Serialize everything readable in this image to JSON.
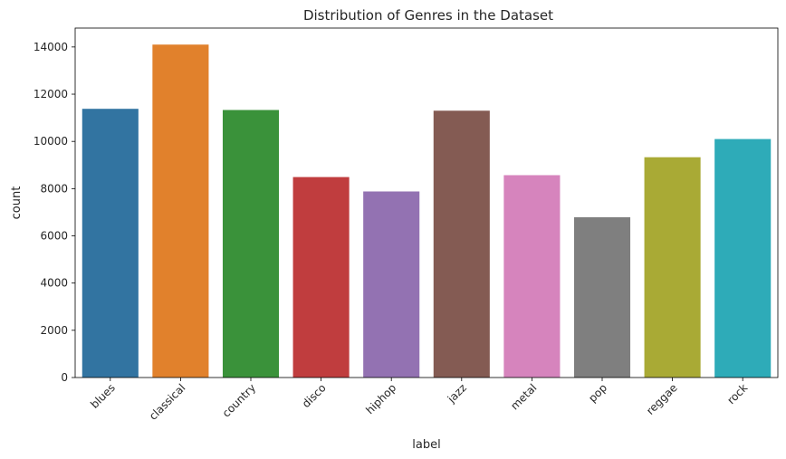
{
  "chart_data": {
    "type": "bar",
    "title": "Distribution of Genres in the Dataset",
    "xlabel": "label",
    "ylabel": "count",
    "categories": [
      "blues",
      "classical",
      "country",
      "disco",
      "hiphop",
      "jazz",
      "metal",
      "pop",
      "reggae",
      "rock"
    ],
    "values": [
      11380,
      14100,
      11330,
      8490,
      7880,
      11300,
      8570,
      6790,
      9330,
      10100
    ],
    "colors": [
      "#3274a1",
      "#e1812c",
      "#3a923a",
      "#c03d3e",
      "#9372b2",
      "#845b53",
      "#d684bd",
      "#7f7f7f",
      "#a9aa35",
      "#2eabb8"
    ],
    "ylim": [
      0,
      14800
    ],
    "yticks": [
      0,
      2000,
      4000,
      6000,
      8000,
      10000,
      12000,
      14000
    ],
    "ytick_labels": [
      "0",
      "2000",
      "4000",
      "6000",
      "8000",
      "10000",
      "12000",
      "14000"
    ],
    "grid": false,
    "legend": "none"
  }
}
